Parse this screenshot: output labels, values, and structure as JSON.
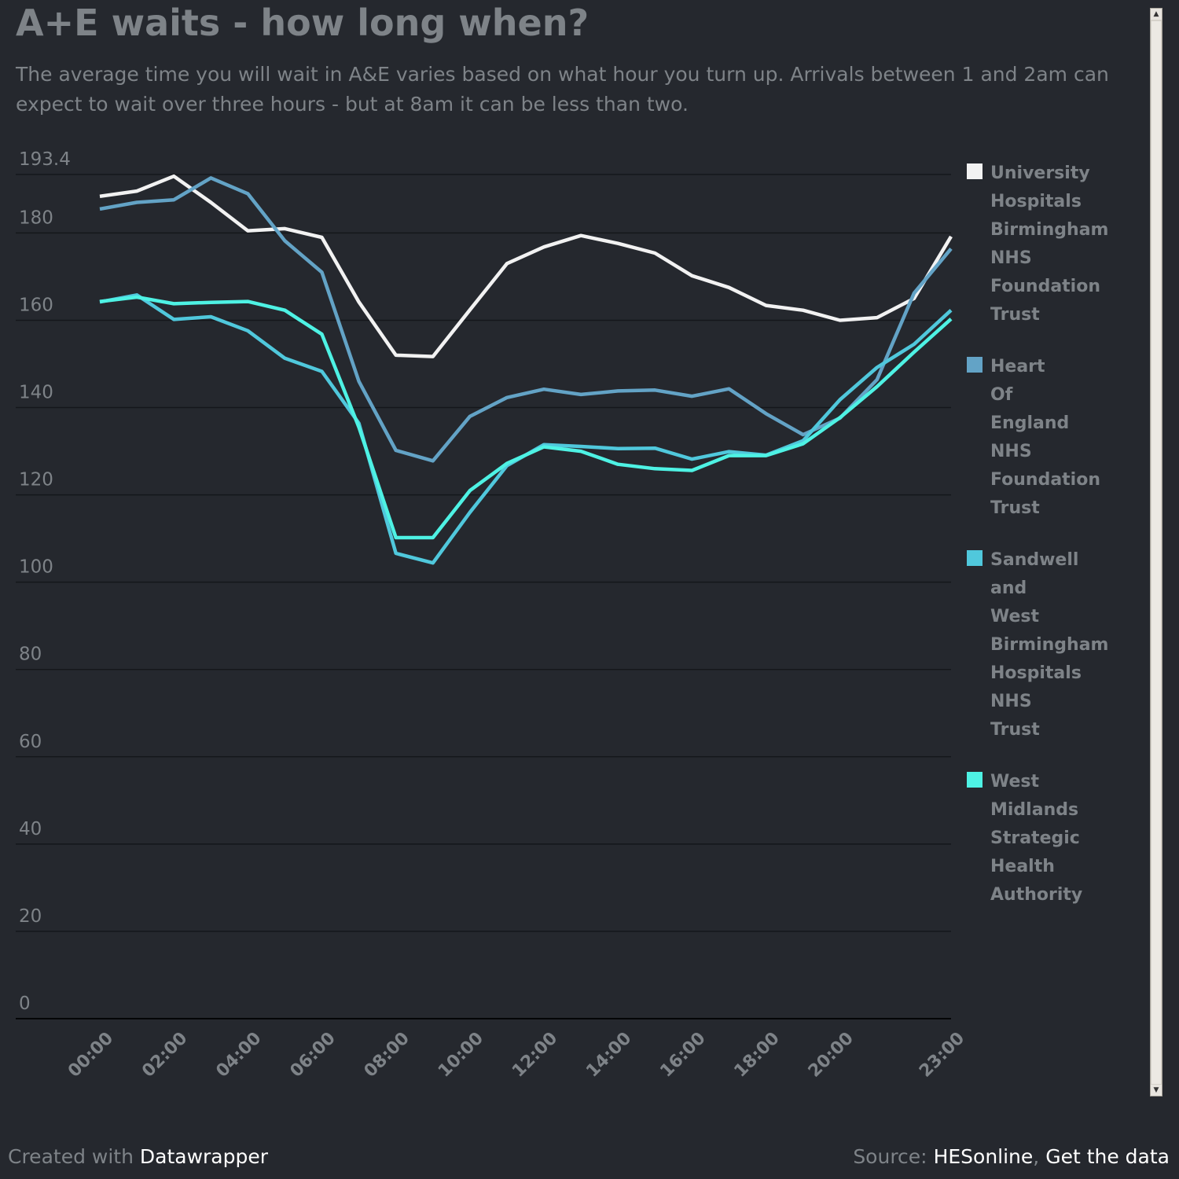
{
  "title": "A+E waits - how long when?",
  "subtitle": "The average time you will wait in A&E varies based on what hour you turn up. Arrivals between 1 and 2am can expect to wait over three hours - but at 8am it can be less than two.",
  "footer": {
    "created_prefix": "Created with",
    "created_link": "Datawrapper",
    "source_prefix": "Source:",
    "source_link": "HESonline",
    "separator": ",",
    "data_link": "Get the data"
  },
  "chart_data": {
    "type": "line",
    "title": "A+E waits - how long when?",
    "xlabel": "",
    "ylabel": "",
    "ylim": [
      0,
      193.4
    ],
    "yticks": [
      0,
      20,
      40,
      60,
      80,
      100,
      120,
      140,
      160,
      180,
      193.4
    ],
    "x": [
      "00:00",
      "01:00",
      "02:00",
      "03:00",
      "04:00",
      "05:00",
      "06:00",
      "07:00",
      "08:00",
      "09:00",
      "10:00",
      "11:00",
      "12:00",
      "13:00",
      "14:00",
      "15:00",
      "16:00",
      "17:00",
      "18:00",
      "19:00",
      "20:00",
      "21:00",
      "22:00",
      "23:00"
    ],
    "xtick_labels": [
      "00:00",
      "02:00",
      "04:00",
      "06:00",
      "08:00",
      "10:00",
      "12:00",
      "14:00",
      "16:00",
      "18:00",
      "20:00",
      "23:00"
    ],
    "grid": true,
    "legend_position": "right",
    "series": [
      {
        "name": "University Hospitals Birmingham NHS Foundation Trust",
        "color": "#f2f2f2",
        "values": [
          188.4,
          189.6,
          193.0,
          187.0,
          180.5,
          181.0,
          179.0,
          164.2,
          152.0,
          151.7,
          162.4,
          173.0,
          176.8,
          179.4,
          177.6,
          175.4,
          170.2,
          167.5,
          163.4,
          162.3,
          160.0,
          160.6,
          165.0,
          179.2
        ]
      },
      {
        "name": "Heart Of England NHS Foundation Trust",
        "color": "#63a3c6",
        "values": [
          185.5,
          187.0,
          187.6,
          192.6,
          189.0,
          178.2,
          171.0,
          146.0,
          130.2,
          127.8,
          138.0,
          142.3,
          144.2,
          143.0,
          143.8,
          144.0,
          142.6,
          144.3,
          138.6,
          133.8,
          137.6,
          146.4,
          166.2,
          176.4
        ]
      },
      {
        "name": "Sandwell and West Birmingham Hospitals NHS Trust",
        "color": "#50c8dc",
        "values": [
          164.2,
          165.8,
          160.2,
          160.8,
          157.6,
          151.3,
          148.3,
          136.4,
          106.6,
          104.4,
          116.0,
          126.7,
          131.5,
          131.1,
          130.6,
          130.7,
          128.2,
          129.9,
          129.1,
          132.4,
          141.8,
          149.2,
          154.5,
          162.3
        ]
      },
      {
        "name": "West Midlands Strategic Health Authority",
        "color": "#4ef2e4",
        "values": [
          164.3,
          165.3,
          163.8,
          164.1,
          164.3,
          162.3,
          156.8,
          135.5,
          110.2,
          110.2,
          121.0,
          127.2,
          131.0,
          130.0,
          127.0,
          126.0,
          125.6,
          129.0,
          129.0,
          131.7,
          137.7,
          144.8,
          152.7,
          160.3
        ]
      }
    ]
  }
}
